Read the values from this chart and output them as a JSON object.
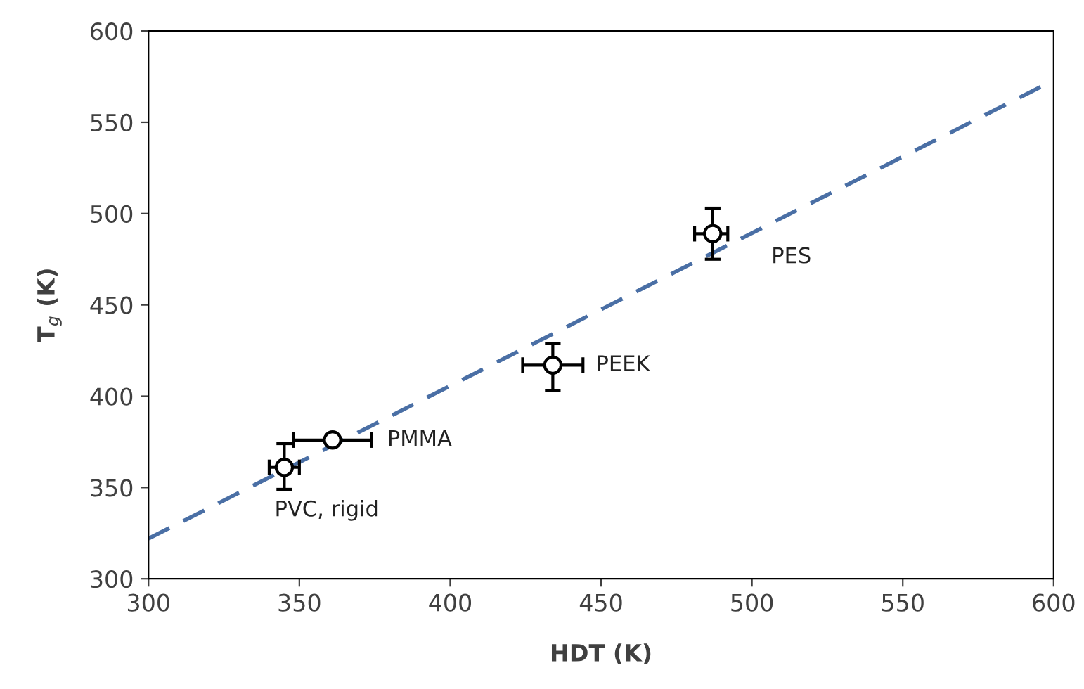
{
  "chart_data": {
    "type": "scatter",
    "xlabel": "HDT (K)",
    "ylabel": "T$_{g}$ (K)",
    "xlim": [
      300,
      600
    ],
    "xticks": [
      300,
      350,
      400,
      450,
      500,
      550,
      600
    ],
    "ylim": [
      300,
      600
    ],
    "yticks": [
      300,
      350,
      400,
      450,
      500,
      550,
      600
    ],
    "grid": false,
    "legend": false,
    "series": [
      {
        "type": "line",
        "color": "#4a6fa5",
        "line_style": "dashed",
        "marker": "none",
        "x": [
          300,
          600
        ],
        "values": [
          322,
          573
        ]
      },
      {
        "color": "#000000",
        "marker": "circle",
        "x": [
          345,
          361,
          434,
          487
        ],
        "values": [
          361,
          376,
          417,
          489
        ],
        "errors": [
          [
            349,
            374
          ],
          null,
          [
            403,
            429
          ],
          [
            475,
            503
          ]
        ],
        "xerrors": [
          [
            340,
            350
          ],
          [
            348,
            374
          ],
          [
            424,
            444
          ],
          [
            481,
            492
          ]
        ]
      }
    ],
    "annotations": [
      {
        "text": "PVC, rigid",
        "x": 345,
        "y": 361
      },
      {
        "text": "PMMA",
        "x": 361,
        "y": 376
      },
      {
        "text": "PEEK",
        "x": 434,
        "y": 417
      },
      {
        "text": "PES",
        "x": 487,
        "y": 489
      }
    ]
  }
}
